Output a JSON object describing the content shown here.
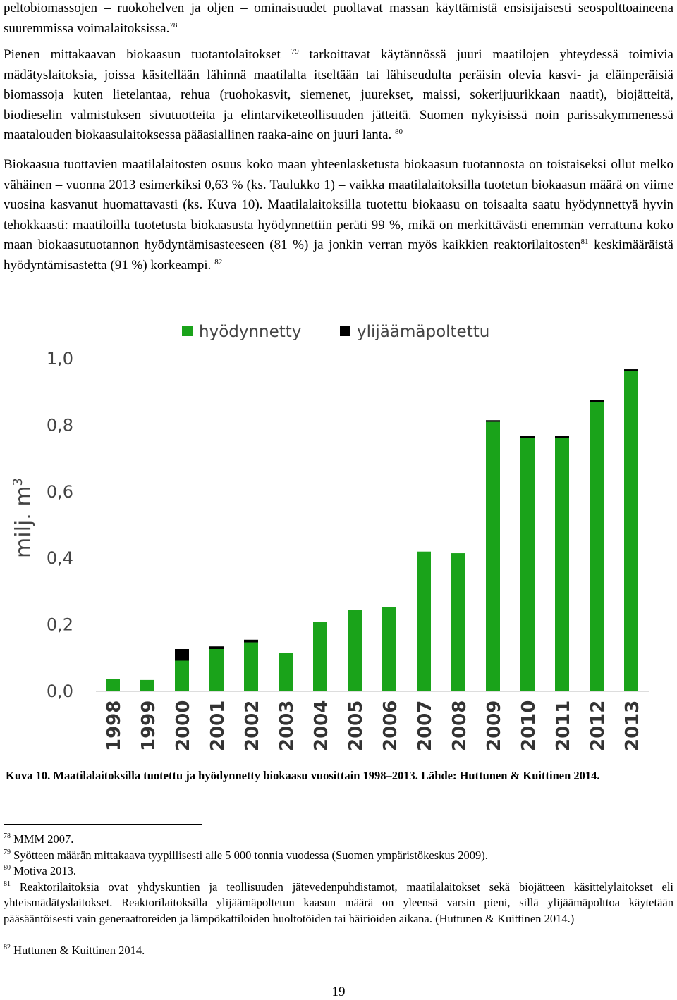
{
  "paragraphs": {
    "p1_text": "peltobiomassojen – ruokohelven ja oljen – ominaisuudet puoltavat massan käyttämistä ensisijaisesti seospolttoaineena suuremmissa voimalaitoksissa.",
    "p1_ref": "78",
    "p2_a": "Pienen mittakaavan biokaasun tuotantolaitokset",
    "p2_ref1": "79",
    "p2_b": "tarkoittavat käytännössä juuri maatilojen yhteydessä toimivia mädätyslaitoksia, joissa käsitellään lähinnä maatilalta itseltään tai lähiseudulta peräisin olevia kasvi- ja eläinperäisiä biomassoja kuten lietelantaa, rehua (ruohokasvit, siemenet, juurekset, maissi, sokerijuurikkaan naatit), biojätteitä, biodieselin valmistuksen sivutuotteita ja elintarviketeollisuuden jätteitä. Suomen nykyisissä noin parissakymmenessä maatalouden biokaasulaitoksessa pääasiallinen raaka-aine on juuri lanta.",
    "p2_ref2": "80",
    "p3_a": "Biokaasua tuottavien maatilalaitosten osuus koko maan yhteenlasketusta biokaasun tuotannosta on toistaiseksi ollut melko vähäinen – vuonna 2013 esimerkiksi 0,63 % (ks. Taulukko 1) – vaikka maatilalaitoksilla tuotetun biokaasun määrä on viime vuosina kasvanut huomattavasti (ks. Kuva 10). Maatilalaitoksilla tuotettu biokaasu on toisaalta saatu hyödynnettyä hyvin tehokkaasti: maatiloilla tuotetusta biokaasusta hyödynnettiin peräti 99 %, mikä on merkittävästi enemmän verrattuna koko maan biokaasutuotannon hyödyntämisasteeseen (81 %) ja jonkin verran myös kaikkien reaktorilaitosten",
    "p3_ref1": "81",
    "p3_b": "keskimääräistä hyödyntämisastetta (91 %) korkeampi.",
    "p3_ref2": "82"
  },
  "chart_data": {
    "type": "bar",
    "stacked": true,
    "categories": [
      "1998",
      "1999",
      "2000",
      "2001",
      "2002",
      "2003",
      "2004",
      "2005",
      "2006",
      "2007",
      "2008",
      "2009",
      "2010",
      "2011",
      "2012",
      "2013"
    ],
    "series": [
      {
        "name": "hyödynnetty",
        "color": "#1aa31a",
        "values": [
          0.035,
          0.032,
          0.09,
          0.125,
          0.145,
          0.113,
          0.207,
          0.242,
          0.252,
          0.418,
          0.413,
          0.808,
          0.76,
          0.76,
          0.868,
          0.96
        ]
      },
      {
        "name": "ylijäämäpoltettu",
        "color": "#000000",
        "values": [
          0.0,
          0.0,
          0.035,
          0.008,
          0.008,
          0.0,
          0.0,
          0.0,
          0.0,
          0.0,
          0.0,
          0.005,
          0.005,
          0.005,
          0.005,
          0.006
        ]
      }
    ],
    "ylabel": "milj. m3",
    "ylabel_base": "milj. m",
    "ylabel_exp": "3",
    "ylim": [
      0,
      1.0
    ],
    "yticks": [
      "0,0",
      "0,2",
      "0,4",
      "0,6",
      "0,8",
      "1,0"
    ],
    "ytick_values": [
      0,
      0.2,
      0.4,
      0.6,
      0.8,
      1.0
    ],
    "legend_position": "top",
    "grid": false
  },
  "caption": "Kuva 10. Maatilalaitoksilla tuotettu ja hyödynnetty biokaasu vuosittain 1998–2013. Lähde: Huttunen & Kuittinen 2014.",
  "footnotes": [
    {
      "num": "78",
      "text": "MMM 2007."
    },
    {
      "num": "79",
      "text": "Syötteen määrän mittakaava tyypillisesti alle 5 000 tonnia vuodessa (Suomen ympäristökeskus 2009)."
    },
    {
      "num": "80",
      "text": "Motiva 2013."
    },
    {
      "num": "81",
      "text": "Reaktorilaitoksia ovat yhdyskuntien ja teollisuuden jätevedenpuhdistamot, maatilalaitokset sekä biojätteen käsittelylaitokset eli yhteismädätyslaitokset. Reaktorilaitoksilla ylijäämäpoltetun kaasun määrä on yleensä varsin pieni, sillä ylijäämäpolttoa käytetään pääsääntöisesti vain generaattoreiden ja lämpökattiloiden huoltotöiden tai häiriöiden aikana. (Huttunen & Kuittinen 2014.)"
    },
    {
      "num": "82",
      "text": "Huttunen & Kuittinen 2014."
    }
  ],
  "page_number": "19"
}
